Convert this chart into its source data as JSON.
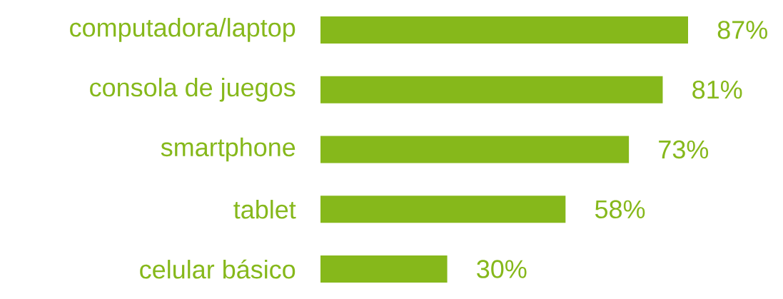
{
  "chart_data": {
    "type": "bar",
    "orientation": "horizontal",
    "categories": [
      "computadora/laptop",
      "consola de juegos",
      "smartphone",
      "tablet",
      "celular básico"
    ],
    "values": [
      87,
      81,
      73,
      58,
      30
    ],
    "value_labels": [
      "87%",
      "81%",
      "73%",
      "58%",
      "30%"
    ],
    "color": "#86b81b"
  }
}
